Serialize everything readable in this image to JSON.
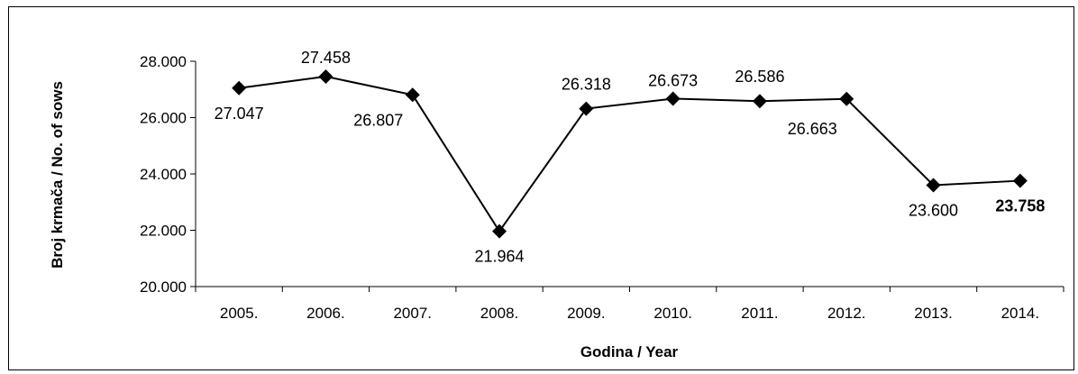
{
  "chart_data": {
    "type": "line",
    "categories": [
      "2005.",
      "2006.",
      "2007.",
      "2008.",
      "2009.",
      "2010.",
      "2011.",
      "2012.",
      "2013.",
      "2014."
    ],
    "values": [
      27047,
      27458,
      26807,
      21964,
      26318,
      26673,
      26586,
      26663,
      23600,
      23758
    ],
    "data_labels": [
      "27.047",
      "27.458",
      "26.807",
      "21.964",
      "26.318",
      "26.673",
      "26.586",
      "26.663",
      "23.600",
      "23.758"
    ],
    "highlighted_label_index": 9,
    "xlabel": "Godina / Year",
    "ylabel": "Broj krmača / No. of sows",
    "ylim": [
      20000,
      28000
    ],
    "yticks": [
      {
        "value": 20000,
        "label": "20.000"
      },
      {
        "value": 22000,
        "label": "22.000"
      },
      {
        "value": 24000,
        "label": "24.000"
      },
      {
        "value": 26000,
        "label": "26.000"
      },
      {
        "value": 28000,
        "label": "28.000"
      }
    ],
    "grid": false,
    "legend": "none",
    "line_color": "#000000",
    "marker": "diamond"
  }
}
